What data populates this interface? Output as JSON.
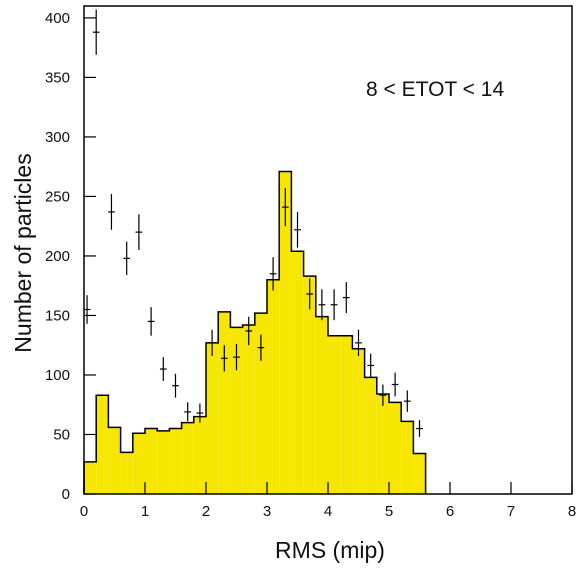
{
  "chart_data": {
    "type": "bar",
    "xlabel": "RMS (mip)",
    "ylabel": "Number of particles",
    "annotation": "8 < ETOT < 14",
    "xlim": [
      0,
      8
    ],
    "ylim": [
      0,
      410
    ],
    "xticks": [
      0,
      1,
      2,
      3,
      4,
      5,
      6,
      7,
      8
    ],
    "yticks": [
      0,
      50,
      100,
      150,
      200,
      250,
      300,
      350,
      400
    ],
    "grid": false,
    "colors": {
      "histogram_fill": "#f7e600",
      "line": "#000000",
      "background": "#ffffff"
    },
    "histogram": {
      "name": "",
      "bin_width": 0.2,
      "bins": [
        {
          "x0": 0.0,
          "x1": 0.2,
          "value": 27
        },
        {
          "x0": 0.2,
          "x1": 0.4,
          "value": 83
        },
        {
          "x0": 0.4,
          "x1": 0.6,
          "value": 56
        },
        {
          "x0": 0.6,
          "x1": 0.8,
          "value": 35
        },
        {
          "x0": 0.8,
          "x1": 1.0,
          "value": 51
        },
        {
          "x0": 1.0,
          "x1": 1.2,
          "value": 55
        },
        {
          "x0": 1.2,
          "x1": 1.4,
          "value": 53
        },
        {
          "x0": 1.4,
          "x1": 1.6,
          "value": 55
        },
        {
          "x0": 1.6,
          "x1": 1.8,
          "value": 60
        },
        {
          "x0": 1.8,
          "x1": 2.0,
          "value": 65
        },
        {
          "x0": 2.0,
          "x1": 2.2,
          "value": 127
        },
        {
          "x0": 2.2,
          "x1": 2.4,
          "value": 153
        },
        {
          "x0": 2.4,
          "x1": 2.6,
          "value": 140
        },
        {
          "x0": 2.6,
          "x1": 2.8,
          "value": 142
        },
        {
          "x0": 2.8,
          "x1": 3.0,
          "value": 152
        },
        {
          "x0": 3.0,
          "x1": 3.2,
          "value": 180
        },
        {
          "x0": 3.2,
          "x1": 3.4,
          "value": 271
        },
        {
          "x0": 3.4,
          "x1": 3.6,
          "value": 204
        },
        {
          "x0": 3.6,
          "x1": 3.8,
          "value": 183
        },
        {
          "x0": 3.8,
          "x1": 4.0,
          "value": 149
        },
        {
          "x0": 4.0,
          "x1": 4.2,
          "value": 133
        },
        {
          "x0": 4.2,
          "x1": 4.4,
          "value": 133
        },
        {
          "x0": 4.4,
          "x1": 4.6,
          "value": 122
        },
        {
          "x0": 4.6,
          "x1": 4.8,
          "value": 98
        },
        {
          "x0": 4.8,
          "x1": 5.0,
          "value": 84
        },
        {
          "x0": 5.0,
          "x1": 5.2,
          "value": 77
        },
        {
          "x0": 5.2,
          "x1": 5.4,
          "value": 61
        },
        {
          "x0": 5.4,
          "x1": 5.6,
          "value": 34
        }
      ]
    },
    "points": {
      "name": "",
      "style": "crosshair with error bars",
      "x_half_width": 0.1,
      "data": [
        {
          "x": 0.05,
          "y": 155,
          "err": 12
        },
        {
          "x": 0.2,
          "y": 388,
          "err": 19
        },
        {
          "x": 0.45,
          "y": 237,
          "err": 15
        },
        {
          "x": 0.7,
          "y": 198,
          "err": 14
        },
        {
          "x": 0.9,
          "y": 220,
          "err": 15
        },
        {
          "x": 1.1,
          "y": 145,
          "err": 12
        },
        {
          "x": 1.3,
          "y": 105,
          "err": 10
        },
        {
          "x": 1.5,
          "y": 91,
          "err": 10
        },
        {
          "x": 1.7,
          "y": 69,
          "err": 8
        },
        {
          "x": 1.9,
          "y": 68,
          "err": 8
        },
        {
          "x": 2.1,
          "y": 127,
          "err": 11
        },
        {
          "x": 2.3,
          "y": 114,
          "err": 11
        },
        {
          "x": 2.5,
          "y": 115,
          "err": 11
        },
        {
          "x": 2.7,
          "y": 137,
          "err": 12
        },
        {
          "x": 2.9,
          "y": 123,
          "err": 11
        },
        {
          "x": 3.1,
          "y": 185,
          "err": 14
        },
        {
          "x": 3.3,
          "y": 241,
          "err": 16
        },
        {
          "x": 3.5,
          "y": 222,
          "err": 15
        },
        {
          "x": 3.7,
          "y": 168,
          "err": 13
        },
        {
          "x": 3.9,
          "y": 159,
          "err": 13
        },
        {
          "x": 4.1,
          "y": 159,
          "err": 13
        },
        {
          "x": 4.3,
          "y": 165,
          "err": 13
        },
        {
          "x": 4.5,
          "y": 127,
          "err": 11
        },
        {
          "x": 4.7,
          "y": 108,
          "err": 10
        },
        {
          "x": 4.9,
          "y": 83,
          "err": 9
        },
        {
          "x": 5.1,
          "y": 92,
          "err": 10
        },
        {
          "x": 5.3,
          "y": 78,
          "err": 9
        },
        {
          "x": 5.5,
          "y": 55,
          "err": 7
        }
      ]
    }
  }
}
